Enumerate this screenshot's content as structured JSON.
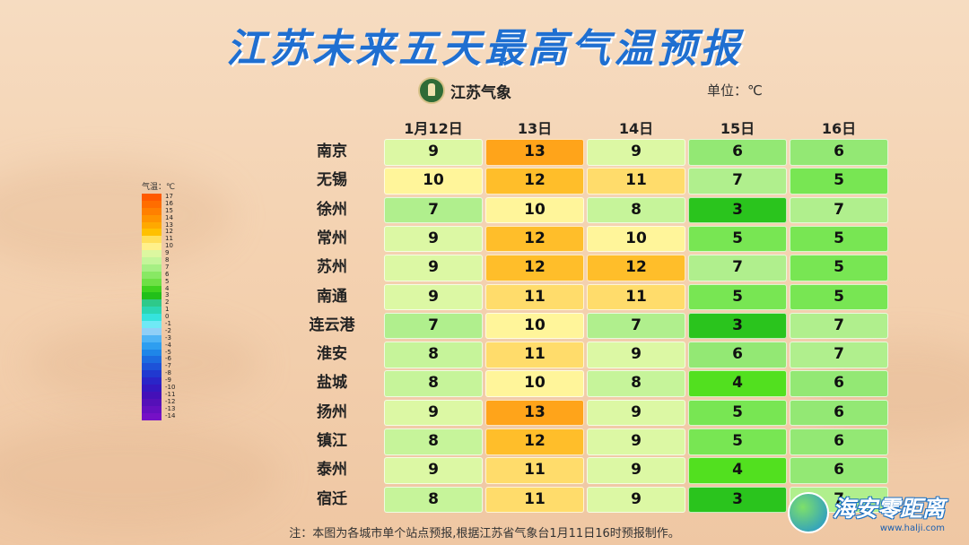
{
  "title": "江苏未来五天最高气温预报",
  "logo_text": "江苏气象",
  "unit_label": "单位：℃",
  "note": "注：本图为各城市单个站点预报,根据江苏省气象台1月11日16时预报制作。",
  "watermark": {
    "text": "海安零距离",
    "url": "www.halji.com"
  },
  "legend": {
    "title": "气温：℃",
    "levels": [
      {
        "label": "17",
        "color": "#ff5a00"
      },
      {
        "label": "16",
        "color": "#ff6d00"
      },
      {
        "label": "15",
        "color": "#ff8000"
      },
      {
        "label": "14",
        "color": "#ff9400"
      },
      {
        "label": "13",
        "color": "#ffa800"
      },
      {
        "label": "12",
        "color": "#ffc000"
      },
      {
        "label": "11",
        "color": "#ffdf5a"
      },
      {
        "label": "10",
        "color": "#fff08a"
      },
      {
        "label": "9",
        "color": "#dcf7a0"
      },
      {
        "label": "8",
        "color": "#c4f59a"
      },
      {
        "label": "7",
        "color": "#a6ef84"
      },
      {
        "label": "6",
        "color": "#88e864"
      },
      {
        "label": "5",
        "color": "#6ee045"
      },
      {
        "label": "4",
        "color": "#3fd21f"
      },
      {
        "label": "3",
        "color": "#22c01a"
      },
      {
        "label": "2",
        "color": "#2ec98a"
      },
      {
        "label": "1",
        "color": "#2bd6b3"
      },
      {
        "label": "0",
        "color": "#35e3dd"
      },
      {
        "label": "-1",
        "color": "#6fe9f5"
      },
      {
        "label": "-2",
        "color": "#8fcff7"
      },
      {
        "label": "-3",
        "color": "#4fb4f5"
      },
      {
        "label": "-4",
        "color": "#2e9ef0"
      },
      {
        "label": "-5",
        "color": "#1f86e8"
      },
      {
        "label": "-6",
        "color": "#1c6be0"
      },
      {
        "label": "-7",
        "color": "#1d52d8"
      },
      {
        "label": "-8",
        "color": "#2039d0"
      },
      {
        "label": "-9",
        "color": "#2a25c8"
      },
      {
        "label": "-10",
        "color": "#3418c0"
      },
      {
        "label": "-11",
        "color": "#4410b8"
      },
      {
        "label": "-12",
        "color": "#5510b8"
      },
      {
        "label": "-13",
        "color": "#6510bf"
      },
      {
        "label": "-14",
        "color": "#7510c6"
      }
    ]
  },
  "chart_data": {
    "type": "table",
    "columns": [
      "1月12日",
      "13日",
      "14日",
      "15日",
      "16日"
    ],
    "rows": [
      {
        "city": "南京",
        "values": [
          9,
          13,
          9,
          6,
          6
        ]
      },
      {
        "city": "无锡",
        "values": [
          10,
          12,
          11,
          7,
          5
        ]
      },
      {
        "city": "徐州",
        "values": [
          7,
          10,
          8,
          3,
          7
        ]
      },
      {
        "city": "常州",
        "values": [
          9,
          12,
          10,
          5,
          5
        ]
      },
      {
        "city": "苏州",
        "values": [
          9,
          12,
          12,
          7,
          5
        ]
      },
      {
        "city": "南通",
        "values": [
          9,
          11,
          11,
          5,
          5
        ]
      },
      {
        "city": "连云港",
        "values": [
          7,
          10,
          7,
          3,
          7
        ]
      },
      {
        "city": "淮安",
        "values": [
          8,
          11,
          9,
          6,
          7
        ]
      },
      {
        "city": "盐城",
        "values": [
          8,
          10,
          8,
          4,
          6
        ]
      },
      {
        "city": "扬州",
        "values": [
          9,
          13,
          9,
          5,
          6
        ]
      },
      {
        "city": "镇江",
        "values": [
          8,
          12,
          9,
          5,
          6
        ]
      },
      {
        "city": "泰州",
        "values": [
          9,
          11,
          9,
          4,
          6
        ]
      },
      {
        "city": "宿迁",
        "values": [
          8,
          11,
          9,
          3,
          7
        ]
      }
    ],
    "color_scale": {
      "3": "#2ac41d",
      "4": "#52e01f",
      "5": "#78e653",
      "6": "#93e874",
      "7": "#b0ef8d",
      "8": "#c6f49a",
      "9": "#dcf8a4",
      "10": "#fff59a",
      "11": "#ffdc6b",
      "12": "#ffbe2a",
      "13": "#ffa41a"
    }
  }
}
